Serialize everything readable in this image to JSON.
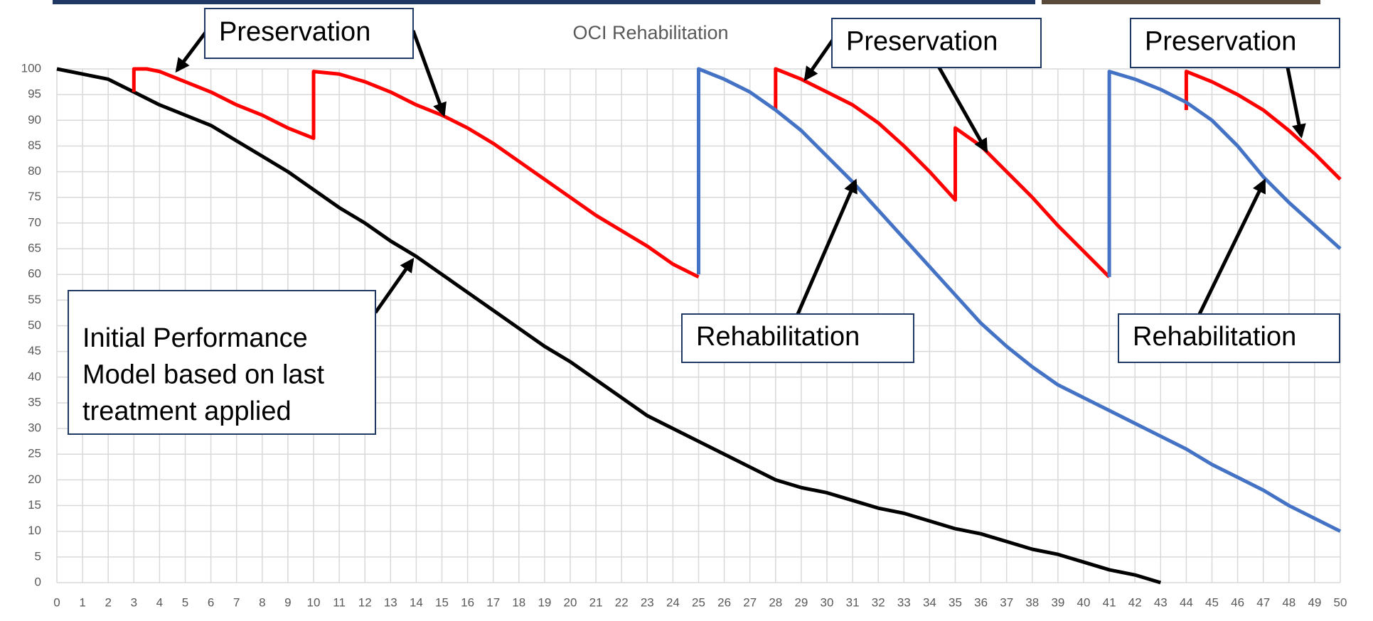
{
  "chart_data": {
    "type": "line",
    "title": "OCI Rehabilitation",
    "xlim": [
      0,
      50
    ],
    "xticks": [
      0,
      1,
      2,
      3,
      4,
      5,
      6,
      7,
      8,
      9,
      10,
      11,
      12,
      13,
      14,
      15,
      16,
      17,
      18,
      19,
      20,
      21,
      22,
      23,
      24,
      25,
      26,
      27,
      28,
      29,
      30,
      31,
      32,
      33,
      34,
      35,
      36,
      37,
      38,
      39,
      40,
      41,
      42,
      43,
      44,
      45,
      46,
      47,
      48,
      49,
      50
    ],
    "ylim": [
      0,
      100
    ],
    "yticks": [
      0,
      5,
      10,
      15,
      20,
      25,
      30,
      35,
      40,
      45,
      50,
      55,
      60,
      65,
      70,
      75,
      80,
      85,
      90,
      95,
      100
    ],
    "grid": true,
    "series": [
      {
        "color": "#000000",
        "x": [
          0,
          1,
          2,
          3,
          4,
          5,
          6,
          7,
          8,
          9,
          10,
          11,
          12,
          13,
          14,
          15,
          16,
          17,
          18,
          19,
          20,
          21,
          22,
          23,
          24,
          25,
          26,
          27,
          28,
          29,
          30,
          31,
          32,
          33,
          34,
          35,
          36,
          37,
          38,
          39,
          40,
          41,
          42,
          43
        ],
        "values": [
          100,
          99,
          98,
          95.5,
          93,
          91,
          89,
          86,
          83,
          80,
          76.5,
          73,
          70,
          66.5,
          63.5,
          60,
          56.5,
          53,
          49.5,
          46,
          43,
          39.5,
          36,
          32.5,
          30,
          27.5,
          25,
          22.5,
          20,
          18.5,
          17.5,
          16,
          14.5,
          13.5,
          12,
          10.5,
          9.5,
          8,
          6.5,
          5.5,
          4,
          2.5,
          1.5,
          0
        ]
      },
      {
        "color": "#ff0000",
        "x": [
          3,
          3,
          3.5,
          4,
          5,
          6,
          7,
          8,
          9,
          10,
          10,
          11,
          12,
          13,
          14,
          15,
          16,
          17,
          18,
          19,
          20,
          21,
          22,
          23,
          24,
          25,
          null,
          28,
          28,
          29,
          30,
          31,
          32,
          33,
          34,
          35,
          35,
          36,
          37,
          38,
          39,
          40,
          41,
          null,
          44,
          44,
          45,
          46,
          47,
          48,
          49,
          50
        ],
        "values": [
          95.5,
          100,
          100,
          99.5,
          97.5,
          95.5,
          93,
          91,
          88.5,
          86.5,
          99.5,
          99,
          97.5,
          95.5,
          93,
          91,
          88.5,
          85.5,
          82,
          78.5,
          75,
          71.5,
          68.5,
          65.5,
          62,
          59.5,
          null,
          92,
          100,
          98,
          95.5,
          93,
          89.5,
          85,
          80,
          74.5,
          88.5,
          85,
          80,
          75,
          69.5,
          64.5,
          59.5,
          null,
          92,
          99.5,
          97.5,
          95,
          92,
          88,
          83.5,
          78.5
        ]
      },
      {
        "color": "#4472c4",
        "x": [
          25,
          25,
          26,
          27,
          28,
          29,
          30,
          31,
          32,
          33,
          34,
          35,
          36,
          37,
          38,
          39,
          40,
          41,
          42,
          43,
          44,
          45,
          46,
          47,
          48,
          49,
          50,
          null,
          41,
          41,
          42,
          43,
          44,
          45,
          46,
          47,
          48,
          49,
          50
        ],
        "values": [
          60,
          100,
          98,
          95.5,
          92,
          88,
          83,
          78,
          72.5,
          67,
          61.5,
          56,
          50.5,
          46,
          42,
          38.5,
          36,
          33.5,
          31,
          28.5,
          26,
          23,
          20.5,
          18,
          15,
          12.5,
          10,
          null,
          59.5,
          99.5,
          98,
          96,
          93.5,
          90,
          85,
          79,
          74,
          69.5,
          65
        ]
      }
    ],
    "annotations": [
      {
        "lines": [
          "Preservation"
        ]
      },
      {
        "lines": [
          "Preservation"
        ]
      },
      {
        "lines": [
          "Preservation"
        ]
      },
      {
        "lines": [
          "Rehabilitation"
        ]
      },
      {
        "lines": [
          "Rehabilitation"
        ]
      },
      {
        "lines": [
          "Initial Performance",
          "Model based on last",
          "treatment applied"
        ]
      }
    ]
  }
}
